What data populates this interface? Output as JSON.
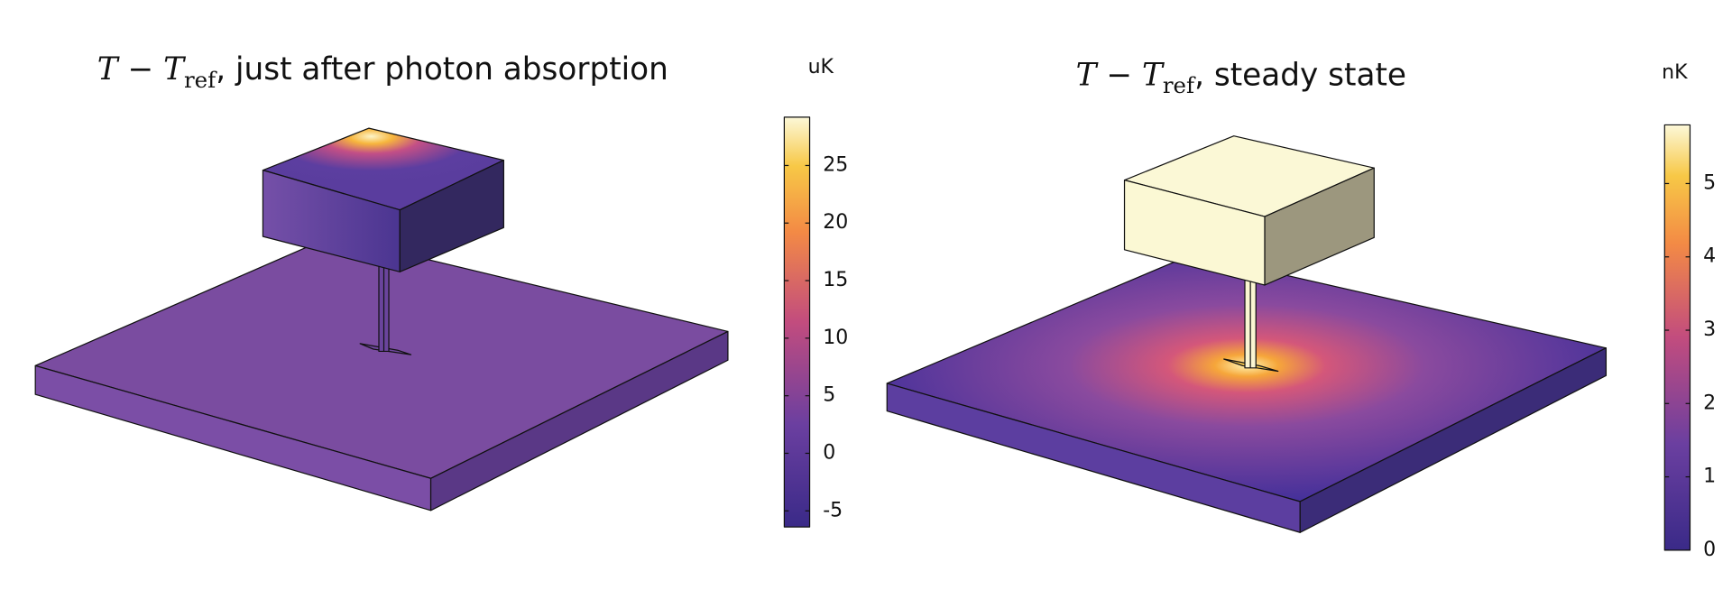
{
  "panels": [
    {
      "title": {
        "math": "T − T",
        "subscript": "ref",
        "text": ", just after photon absorption"
      },
      "unit": "uK",
      "clim": [
        -6.4,
        29.2
      ],
      "ticks": [
        -5,
        0,
        5,
        10,
        15,
        20,
        25
      ]
    },
    {
      "title": {
        "math": "T − T",
        "subscript": "ref",
        "text": ", steady state"
      },
      "unit": "nK",
      "clim": [
        0,
        5.8
      ],
      "ticks": [
        0,
        1,
        2,
        3,
        4,
        5
      ]
    }
  ]
}
